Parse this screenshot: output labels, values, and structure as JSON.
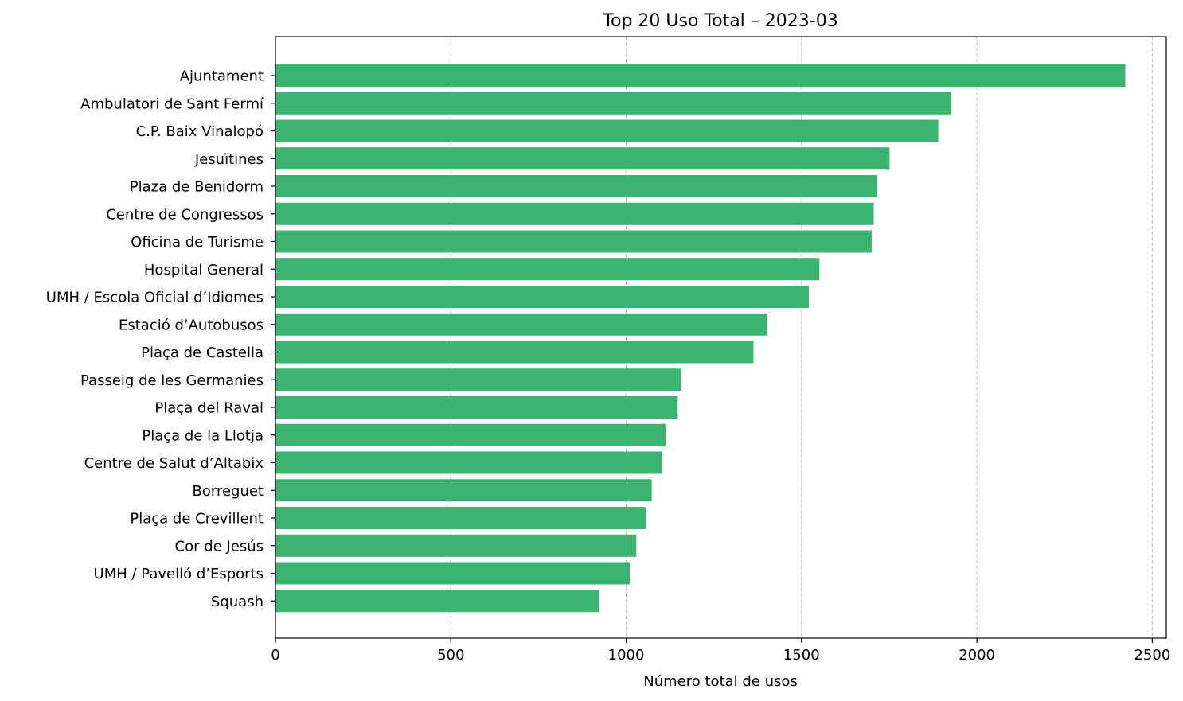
{
  "chart_data": {
    "type": "bar",
    "orientation": "horizontal",
    "title": "Top 20 Uso Total – 2023-03",
    "xlabel": "Número total de usos",
    "ylabel": "",
    "xlim": [
      0,
      2540
    ],
    "xticks": [
      0,
      500,
      1000,
      1500,
      2000,
      2500
    ],
    "grid": "x-dashed",
    "bar_color": "#3cb371",
    "categories": [
      "Ajuntament",
      "Ambulatori de Sant Fermí",
      "C.P. Baix Vinalopó",
      "Jesuïtines",
      "Plaza de Benidorm",
      "Centre de Congressos",
      "Oficina de Turisme",
      "Hospital General",
      "UMH / Escola Oficial d’Idiomes",
      "Estació d’Autobusos",
      "Plaça de Castella",
      "Passeig de les Germanies",
      "Plaça del Raval",
      "Plaça de la Llotja",
      "Centre de Salut d’Altabix",
      "Borreguet",
      "Plaça de Crevillent",
      "Cor de Jesús",
      "UMH / Pavelló d’Esports",
      "Squash"
    ],
    "values": [
      2423,
      1926,
      1890,
      1751,
      1716,
      1706,
      1700,
      1551,
      1521,
      1402,
      1363,
      1157,
      1147,
      1113,
      1103,
      1073,
      1056,
      1029,
      1010,
      922
    ]
  }
}
